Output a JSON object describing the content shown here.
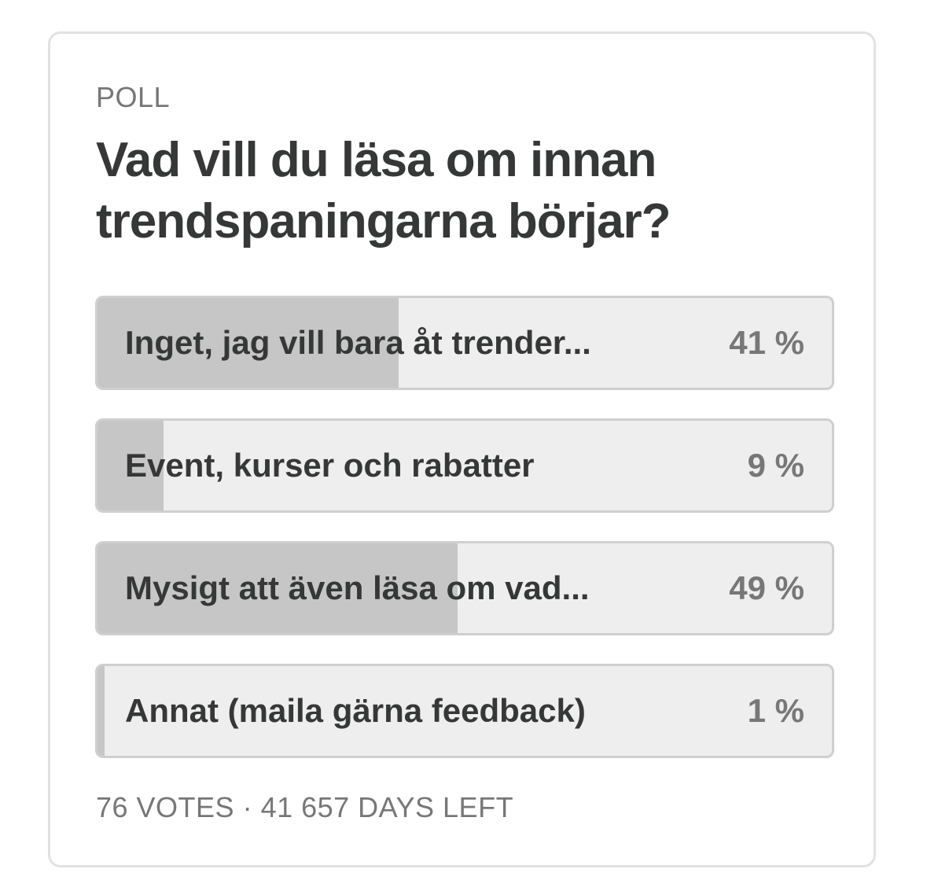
{
  "poll": {
    "label": "POLL",
    "title": "Vad vill du läsa om innan trendspaningarna börjar?",
    "options": [
      {
        "label": "Inget, jag vill bara åt trender...",
        "percent_text": "41 %",
        "percent": 41
      },
      {
        "label": "Event, kurser och rabatter",
        "percent_text": "9 %",
        "percent": 9
      },
      {
        "label": "Mysigt att även läsa om vad...",
        "percent_text": "49 %",
        "percent": 49
      },
      {
        "label": "Annat (maila gärna feedback)",
        "percent_text": "1 %",
        "percent": 1
      }
    ],
    "footer": "76 VOTES · 41 657 DAYS LEFT"
  },
  "colors": {
    "bar_fill": "#c6c6c6",
    "bar_track": "#eeeeee",
    "text_dark": "#363737",
    "text_muted": "#777777"
  }
}
